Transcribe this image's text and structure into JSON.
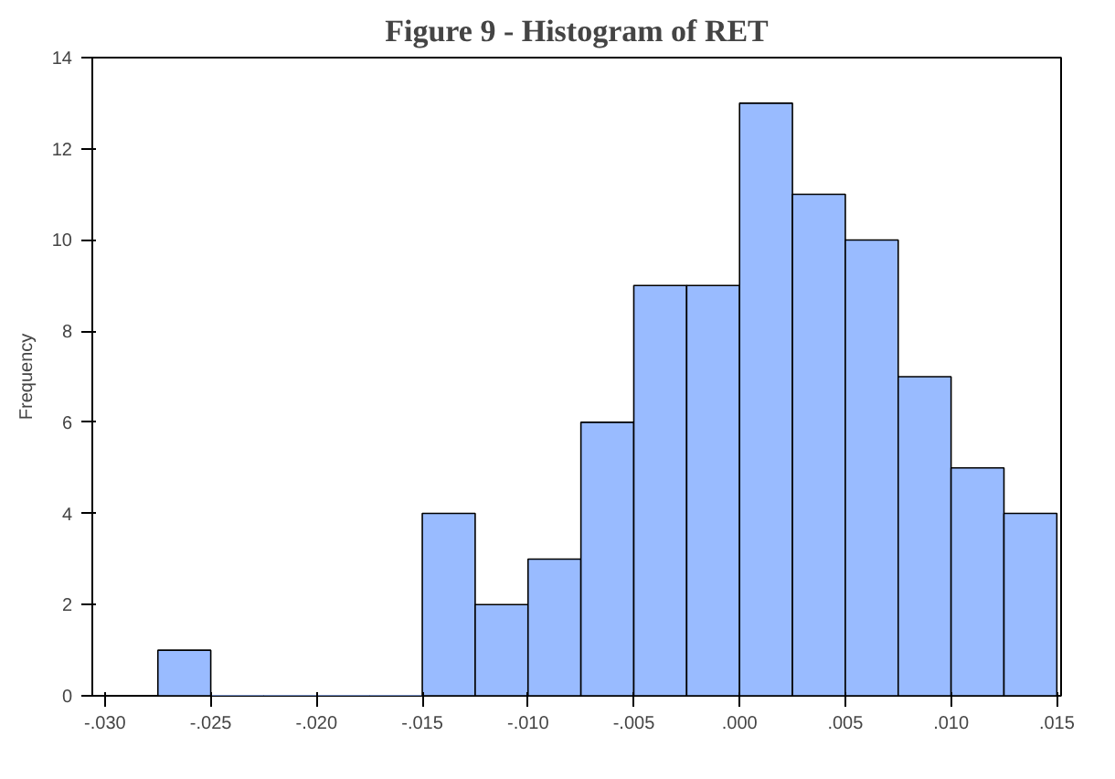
{
  "chart_data": {
    "type": "histogram",
    "title": "Figure 9 - Histogram of RET",
    "ylabel": "Frequency",
    "bins": [
      -0.0275,
      -0.025,
      -0.0225,
      -0.02,
      -0.0175,
      -0.015,
      -0.0125,
      -0.01,
      -0.0075,
      -0.005,
      -0.0025,
      0,
      0.0025,
      0.005,
      0.0075,
      0.01,
      0.0125,
      0.015
    ],
    "values": [
      1,
      0,
      0,
      0,
      0,
      4,
      2,
      3,
      6,
      9,
      9,
      13,
      11,
      10,
      7,
      5,
      4
    ],
    "color": "#99bbff",
    "xlim": [
      -0.0306,
      0.0152
    ],
    "ylim": [
      0,
      14
    ],
    "xticks": [
      {
        "value": -0.03,
        "label": "-.030"
      },
      {
        "value": -0.025,
        "label": "-.025"
      },
      {
        "value": -0.02,
        "label": "-.020"
      },
      {
        "value": -0.015,
        "label": "-.015"
      },
      {
        "value": -0.01,
        "label": "-.010"
      },
      {
        "value": -0.005,
        "label": "-.005"
      },
      {
        "value": 0,
        "label": ".000"
      },
      {
        "value": 0.005,
        "label": ".005"
      },
      {
        "value": 0.01,
        "label": ".010"
      },
      {
        "value": 0.015,
        "label": ".015"
      }
    ],
    "yticks": [
      0,
      2,
      4,
      6,
      8,
      10,
      12,
      14
    ],
    "grid": false
  }
}
